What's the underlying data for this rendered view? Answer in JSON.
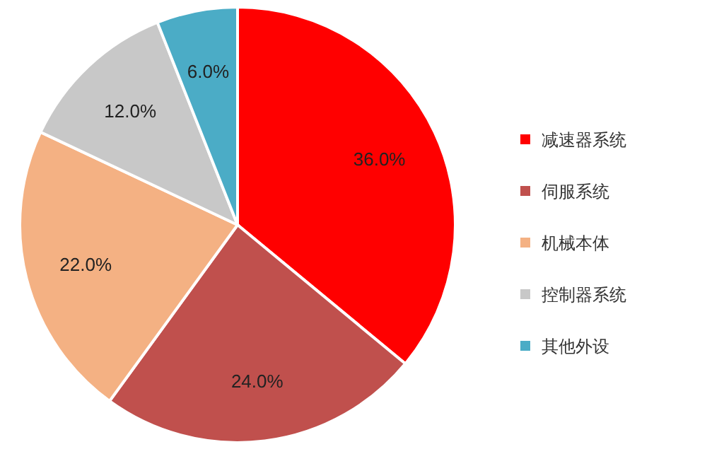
{
  "chart_data": {
    "type": "pie",
    "categories": [
      "减速器系统",
      "伺服系统",
      "机械本体",
      "控制器系统",
      "其他外设"
    ],
    "values": [
      36.0,
      24.0,
      22.0,
      12.0,
      6.0
    ],
    "colors": [
      "#ff0000",
      "#c0504d",
      "#f4b183",
      "#c8c8c8",
      "#4bacc6"
    ],
    "value_labels": [
      "36.0%",
      "24.0%",
      "22.0%",
      "12.0%",
      "6.0%"
    ],
    "legend": "right"
  }
}
